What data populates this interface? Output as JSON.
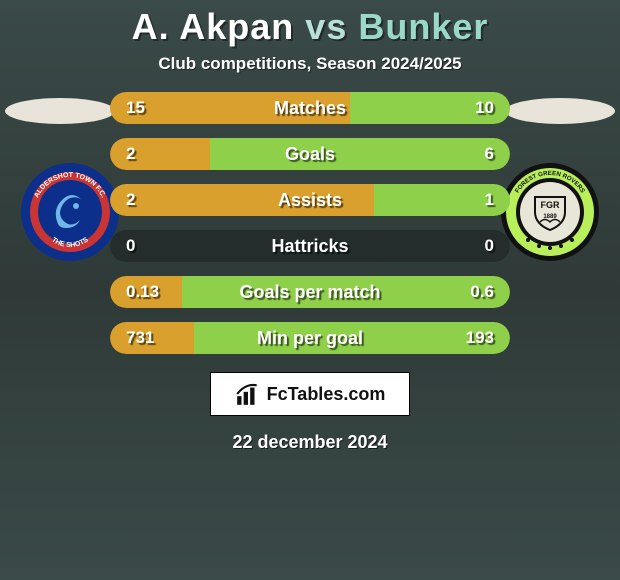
{
  "title": {
    "player1": "A. Akpan",
    "vs": "vs",
    "player2": "Bunker"
  },
  "subtitle": "Club competitions, Season 2024/2025",
  "colors": {
    "p1_bar": "#d9a02e",
    "p2_bar": "#8fd04a",
    "oval_left": "#e8e4da",
    "oval_right": "#e8e4da"
  },
  "crests": {
    "left": {
      "outer": "#0b2f8a",
      "mid": "#c93434",
      "inner": "#0b2f8a",
      "text_top": "ALDERSHOT TOWN F.C.",
      "text_bottom": "THE SHOTS"
    },
    "right": {
      "outer": "#111111",
      "ring": "#b9ef5a",
      "inner": "#e8e6d8",
      "text_top": "FOREST GREEN ROVERS",
      "center": "FGR",
      "year": "1889"
    }
  },
  "stats": [
    {
      "label": "Matches",
      "v1": "15",
      "v2": "10",
      "w1": 60,
      "w2": 40
    },
    {
      "label": "Goals",
      "v1": "2",
      "v2": "6",
      "w1": 25,
      "w2": 75
    },
    {
      "label": "Assists",
      "v1": "2",
      "v2": "1",
      "w1": 66,
      "w2": 34
    },
    {
      "label": "Hattricks",
      "v1": "0",
      "v2": "0",
      "w1": 0,
      "w2": 0
    },
    {
      "label": "Goals per match",
      "v1": "0.13",
      "v2": "0.6",
      "w1": 18,
      "w2": 82
    },
    {
      "label": "Min per goal",
      "v1": "731",
      "v2": "193",
      "w1": 21,
      "w2": 79
    }
  ],
  "brand": "FcTables.com",
  "date": "22 december 2024"
}
